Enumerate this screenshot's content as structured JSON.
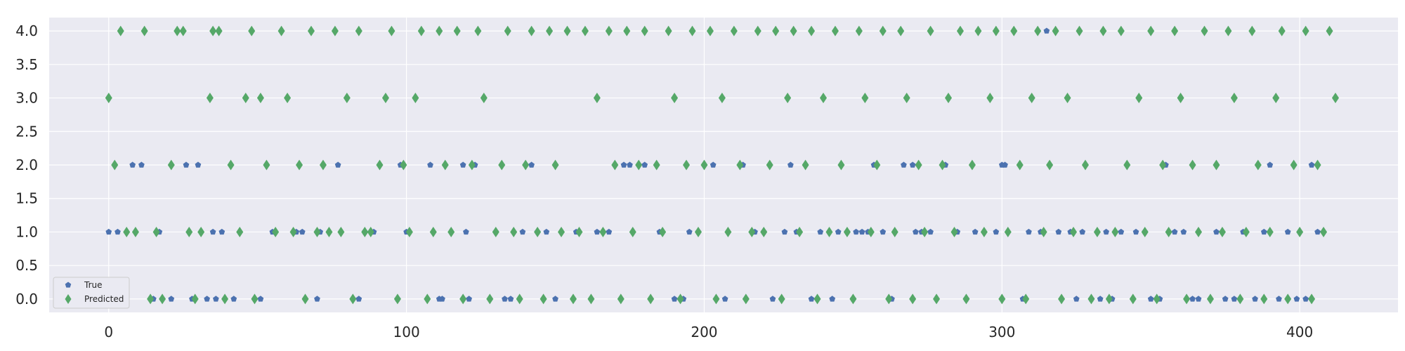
{
  "chart_data": {
    "type": "scatter",
    "title": "",
    "xlabel": "",
    "ylabel": "",
    "xlim": [
      -20,
      433
    ],
    "ylim": [
      -0.2,
      4.2
    ],
    "xticks": [
      0,
      100,
      200,
      300,
      400
    ],
    "yticks": [
      0.0,
      0.5,
      1.0,
      1.5,
      2.0,
      2.5,
      3.0,
      3.5,
      4.0
    ],
    "xtick_labels": [
      "0",
      "100",
      "200",
      "300",
      "400"
    ],
    "ytick_labels": [
      "0.0",
      "0.5",
      "1.0",
      "1.5",
      "2.0",
      "2.5",
      "3.0",
      "3.5",
      "4.0"
    ],
    "grid": true,
    "legend_position": "lower-left",
    "series": [
      {
        "name": "True",
        "marker": "pentagon",
        "color": "#4c72b0",
        "x": [
          0,
          3,
          8,
          11,
          15,
          17,
          21,
          26,
          28,
          30,
          33,
          35,
          36,
          38,
          42,
          51,
          55,
          63,
          65,
          70,
          71,
          77,
          84,
          86,
          89,
          97,
          98,
          100,
          108,
          111,
          112,
          119,
          120,
          121,
          123,
          130,
          133,
          135,
          139,
          142,
          144,
          147,
          150,
          157,
          164,
          168,
          173,
          175,
          180,
          185,
          190,
          193,
          195,
          198,
          203,
          207,
          213,
          217,
          220,
          223,
          227,
          229,
          231,
          236,
          239,
          243,
          245,
          248,
          250,
          251,
          253,
          255,
          257,
          260,
          263,
          267,
          270,
          271,
          273,
          276,
          281,
          285,
          288,
          291,
          298,
          300,
          301,
          307,
          309,
          313,
          315,
          319,
          323,
          325,
          327,
          330,
          333,
          335,
          337,
          340,
          345,
          348,
          350,
          353,
          355,
          358,
          361,
          364,
          366,
          368,
          372,
          375,
          378,
          381,
          385,
          388,
          390,
          393,
          396,
          399,
          402,
          404,
          406
        ],
        "y": [
          1,
          1,
          2,
          2,
          0,
          1,
          0,
          2,
          0,
          2,
          0,
          1,
          0,
          1,
          0,
          0,
          1,
          1,
          1,
          0,
          1,
          2,
          0,
          1,
          1,
          0,
          2,
          1,
          2,
          0,
          0,
          2,
          1,
          0,
          2,
          1,
          0,
          0,
          1,
          2,
          1,
          1,
          0,
          1,
          1,
          1,
          2,
          2,
          2,
          1,
          0,
          0,
          1,
          1,
          2,
          0,
          2,
          1,
          1,
          0,
          1,
          2,
          1,
          0,
          1,
          0,
          1,
          1,
          0,
          1,
          1,
          1,
          2,
          1,
          0,
          2,
          2,
          1,
          1,
          1,
          2,
          1,
          0,
          1,
          1,
          2,
          2,
          0,
          1,
          1,
          4,
          1,
          1,
          0,
          1,
          0,
          0,
          1,
          0,
          1,
          1,
          1,
          0,
          0,
          2,
          1,
          1,
          0,
          0,
          4,
          1,
          0,
          0,
          1,
          0,
          1,
          2,
          0,
          1,
          0,
          0,
          2,
          1
        ]
      },
      {
        "name": "Predicted",
        "marker": "diamond",
        "color": "#55a868",
        "x": [
          0,
          2,
          4,
          6,
          9,
          12,
          14,
          16,
          18,
          21,
          23,
          25,
          27,
          29,
          31,
          34,
          35,
          37,
          39,
          41,
          44,
          46,
          48,
          49,
          51,
          53,
          56,
          58,
          60,
          62,
          64,
          66,
          68,
          70,
          72,
          74,
          76,
          78,
          80,
          82,
          84,
          86,
          88,
          91,
          93,
          95,
          97,
          99,
          101,
          103,
          105,
          107,
          109,
          111,
          113,
          115,
          117,
          119,
          122,
          124,
          126,
          128,
          130,
          132,
          134,
          136,
          138,
          140,
          142,
          144,
          146,
          148,
          150,
          152,
          154,
          156,
          158,
          160,
          162,
          164,
          166,
          168,
          170,
          172,
          174,
          176,
          178,
          180,
          182,
          184,
          186,
          188,
          190,
          192,
          194,
          196,
          198,
          200,
          202,
          204,
          206,
          208,
          210,
          212,
          214,
          216,
          218,
          220,
          222,
          224,
          226,
          228,
          230,
          232,
          234,
          236,
          238,
          240,
          242,
          244,
          246,
          248,
          250,
          252,
          254,
          256,
          258,
          260,
          262,
          264,
          266,
          268,
          270,
          272,
          274,
          276,
          278,
          280,
          282,
          284,
          286,
          288,
          290,
          292,
          294,
          296,
          298,
          300,
          302,
          304,
          306,
          308,
          310,
          312,
          314,
          316,
          318,
          320,
          322,
          324,
          326,
          328,
          330,
          332,
          334,
          336,
          338,
          340,
          342,
          344,
          346,
          348,
          350,
          352,
          354,
          356,
          358,
          360,
          362,
          364,
          366,
          368,
          370,
          372,
          374,
          376,
          378,
          380,
          382,
          384,
          386,
          388,
          390,
          392,
          394,
          396,
          398,
          400,
          402,
          404,
          406,
          408,
          410,
          412
        ],
        "y": [
          3,
          2,
          4,
          1,
          1,
          4,
          0,
          1,
          0,
          2,
          4,
          4,
          1,
          0,
          1,
          3,
          4,
          4,
          0,
          2,
          1,
          3,
          4,
          0,
          3,
          2,
          1,
          4,
          3,
          1,
          2,
          0,
          4,
          1,
          2,
          1,
          4,
          1,
          3,
          0,
          4,
          1,
          1,
          2,
          3,
          4,
          0,
          2,
          1,
          3,
          4,
          0,
          1,
          4,
          2,
          1,
          4,
          0,
          2,
          4,
          3,
          0,
          1,
          2,
          4,
          1,
          0,
          2,
          4,
          1,
          0,
          4,
          2,
          1,
          4,
          0,
          1,
          4,
          0,
          3,
          1,
          4,
          2,
          0,
          4,
          1,
          2,
          4,
          0,
          2,
          1,
          4,
          3,
          0,
          2,
          4,
          1,
          2,
          4,
          0,
          3,
          1,
          4,
          2,
          0,
          1,
          4,
          1,
          2,
          4,
          0,
          3,
          4,
          1,
          2,
          4,
          0,
          3,
          1,
          4,
          2,
          1,
          0,
          4,
          3,
          1,
          2,
          4,
          0,
          1,
          4,
          3,
          0,
          2,
          1,
          4,
          0,
          2,
          3,
          1,
          4,
          0,
          2,
          4,
          1,
          3,
          4,
          0,
          1,
          4,
          2,
          0,
          3,
          4,
          1,
          2,
          4,
          0,
          3,
          1,
          4,
          2,
          0,
          1,
          4,
          0,
          1,
          4,
          2,
          0,
          3,
          1,
          4,
          0,
          2,
          1,
          4,
          3,
          0,
          2,
          1,
          4,
          0,
          2,
          1,
          4,
          3,
          0,
          1,
          4,
          2,
          0,
          1,
          3,
          4,
          0,
          2,
          1,
          4,
          0,
          2,
          1,
          4,
          3
        ]
      }
    ]
  }
}
